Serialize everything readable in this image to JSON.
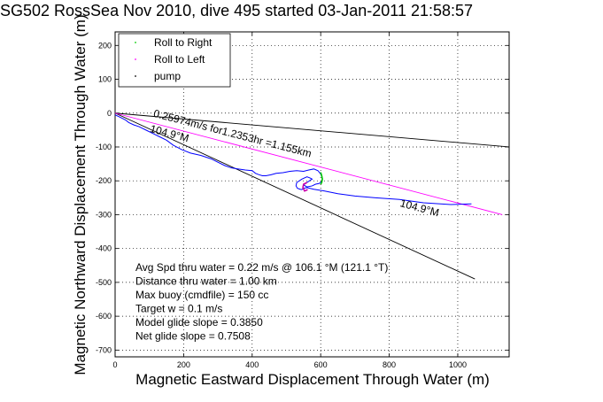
{
  "chart_data": {
    "type": "line",
    "title": "SG502 RossSea Nov 2010, dive 495 started 03-Jan-2011 21:58:57",
    "xlabel": "Magnetic Eastward Displacement Through Water (m)",
    "ylabel": "Magnetic Northward Displacement Through Water (m)",
    "xlim": [
      0,
      1150
    ],
    "ylim": [
      -720,
      240
    ],
    "xticks": [
      0,
      200,
      400,
      600,
      800,
      1000
    ],
    "yticks": [
      200,
      100,
      0,
      -100,
      -200,
      -300,
      -400,
      -500,
      -600,
      -700
    ],
    "grid": true,
    "legend_position": "top-left",
    "legend": [
      {
        "name": "Roll to Right",
        "color": "#00cc00"
      },
      {
        "name": "Roll to Left",
        "color": "#ff00ff"
      },
      {
        "name": "pump",
        "color": "#000000"
      }
    ],
    "series": [
      {
        "name": "",
        "color": "#0000ff",
        "x": [
          0,
          10,
          20,
          30,
          40,
          55,
          70,
          90,
          110,
          130,
          150,
          170,
          195,
          220,
          250,
          280,
          300,
          320,
          340,
          360,
          380,
          400,
          410,
          420,
          430,
          440,
          455,
          470,
          490,
          510,
          530,
          550,
          565,
          580,
          592,
          600,
          605,
          603,
          595,
          585,
          575,
          560,
          550,
          560,
          570,
          575,
          570,
          560,
          545,
          530,
          528,
          532,
          540,
          545,
          550,
          560,
          580,
          610,
          650,
          700,
          760,
          830,
          900,
          980,
          1040
        ],
        "y": [
          -5,
          -10,
          -15,
          -20,
          -28,
          -35,
          -40,
          -50,
          -60,
          -70,
          -80,
          -95,
          -108,
          -118,
          -125,
          -135,
          -145,
          -155,
          -162,
          -165,
          -168,
          -170,
          -178,
          -182,
          -185,
          -185,
          -182,
          -178,
          -176,
          -172,
          -170,
          -172,
          -168,
          -165,
          -170,
          -180,
          -192,
          -202,
          -208,
          -210,
          -215,
          -218,
          -212,
          -205,
          -198,
          -195,
          -192,
          -188,
          -195,
          -205,
          -215,
          -222,
          -225,
          -226,
          -222,
          -220,
          -225,
          -230,
          -238,
          -245,
          -250,
          -255,
          -265,
          -270,
          -268
        ]
      }
    ],
    "reference_lines": [
      {
        "color": "#000000",
        "x": [
          0,
          1150
        ],
        "y": [
          0,
          -100
        ]
      },
      {
        "color": "#000000",
        "x": [
          0,
          1050
        ],
        "y": [
          0,
          -490
        ]
      },
      {
        "color": "#ff00ff",
        "x": [
          0,
          1130
        ],
        "y": [
          0,
          -300
        ]
      }
    ],
    "extra_marks": [
      {
        "color": "#00cc00",
        "x": [
          600,
          603,
          605,
          603,
          600
        ],
        "y": [
          -175,
          -185,
          -195,
          -205,
          -210
        ]
      },
      {
        "color": "#cc00aa",
        "x": [
          560,
          550,
          548,
          553,
          562
        ],
        "y": [
          -205,
          -210,
          -220,
          -230,
          -226
        ]
      }
    ],
    "annotations": [
      {
        "text": "0.25974m/s for1.2353hr =1.155km",
        "x": 110,
        "y": -10,
        "rotate": 14.5
      },
      {
        "text": "104.9°M",
        "x": 100,
        "y": -55,
        "rotate": 15
      },
      {
        "text": "104.9°M",
        "x": 830,
        "y": -275,
        "rotate": 15
      }
    ],
    "stats": [
      "Avg Spd thru water =  0.22 m/s @ 106.1   °M (121.1 °T)",
      "Distance thru water =  1.00 km",
      "Max buoy (cmdfile) = 150 cc",
      "Target w = 0.1 m/s",
      "Model glide slope = 0.3850",
      "Net glide slope = 0.7508"
    ]
  }
}
